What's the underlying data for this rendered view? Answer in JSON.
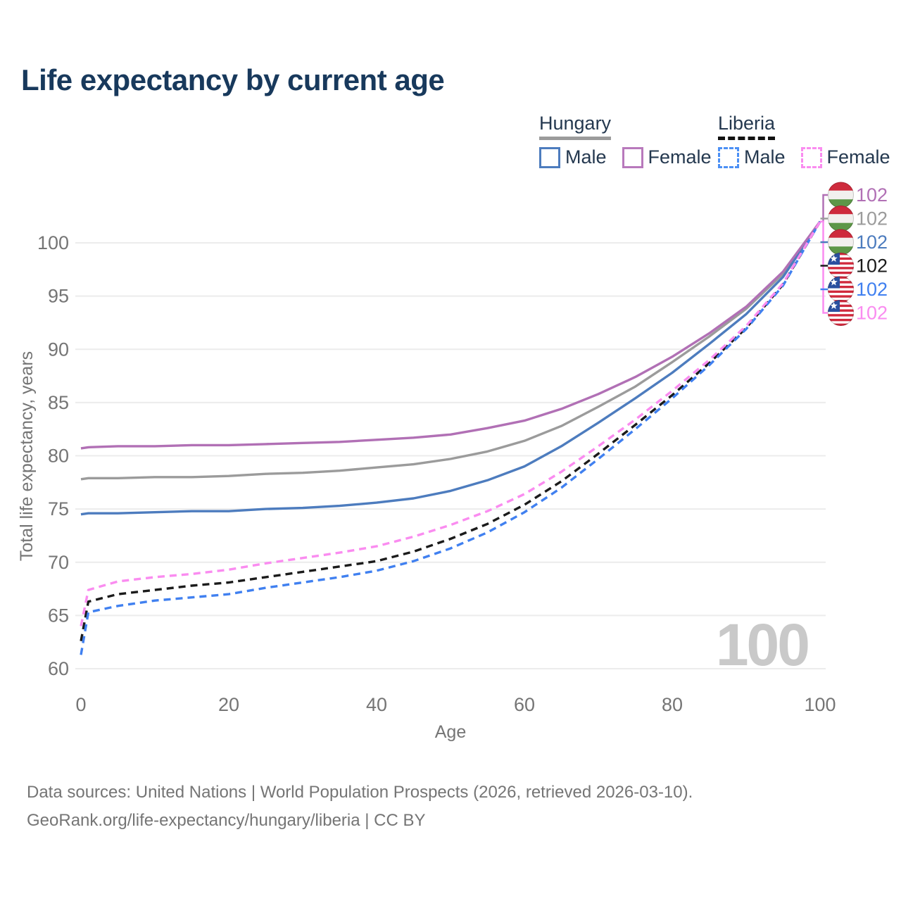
{
  "title": "Life expectancy by current age",
  "legend": {
    "groups": [
      {
        "name": "Hungary",
        "line_style": "solid",
        "underline_color": "#9b9b9b",
        "items": [
          {
            "label": "Male",
            "color": "#4d7cbe"
          },
          {
            "label": "Female",
            "color": "#b879bc"
          }
        ]
      },
      {
        "name": "Liberia",
        "line_style": "dashed",
        "underline_color": "#111111",
        "items": [
          {
            "label": "Male",
            "color": "#4c90f5"
          },
          {
            "label": "Female",
            "color": "#fa8cf0"
          }
        ]
      }
    ]
  },
  "watermark_age": "100",
  "footer": {
    "line1": "Data sources: United Nations | World Population Prospects (2026, retrieved 2026-03-10).",
    "line2": "GeoRank.org/life-expectancy/hungary/liberia | CC BY"
  },
  "chart_data": {
    "type": "line",
    "title": "Life expectancy by current age",
    "xlabel": "Age",
    "ylabel": "Total life expectancy, years",
    "xlim": [
      0,
      100
    ],
    "ylim": [
      60,
      103
    ],
    "xticks": [
      0,
      20,
      40,
      60,
      80,
      100
    ],
    "yticks": [
      60,
      65,
      70,
      75,
      80,
      85,
      90,
      95,
      100
    ],
    "grid": "horizontal-only",
    "legend_position": "top-right",
    "ages": [
      0,
      1,
      5,
      10,
      15,
      20,
      25,
      30,
      35,
      40,
      45,
      50,
      55,
      60,
      65,
      70,
      75,
      80,
      85,
      90,
      95,
      100
    ],
    "series": [
      {
        "name": "Hungary Total",
        "country": "Hungary",
        "sex": "Total",
        "color": "#9b9b9b",
        "dashed": false,
        "values": [
          77.8,
          77.9,
          77.9,
          78.0,
          78.0,
          78.1,
          78.3,
          78.4,
          78.6,
          78.9,
          79.2,
          79.7,
          80.4,
          81.4,
          82.8,
          84.6,
          86.5,
          88.8,
          91.2,
          93.8,
          97.1,
          102
        ]
      },
      {
        "name": "Hungary Male",
        "country": "Hungary",
        "sex": "Male",
        "color": "#4d7cbe",
        "dashed": false,
        "values": [
          74.5,
          74.6,
          74.6,
          74.7,
          74.8,
          74.8,
          75.0,
          75.1,
          75.3,
          75.6,
          76.0,
          76.7,
          77.7,
          79.0,
          80.9,
          83.1,
          85.4,
          87.8,
          90.5,
          93.3,
          96.8,
          102
        ]
      },
      {
        "name": "Hungary Female",
        "country": "Hungary",
        "sex": "Female",
        "color": "#b170b5",
        "dashed": false,
        "values": [
          80.7,
          80.8,
          80.9,
          80.9,
          81.0,
          81.0,
          81.1,
          81.2,
          81.3,
          81.5,
          81.7,
          82.0,
          82.6,
          83.3,
          84.4,
          85.8,
          87.4,
          89.3,
          91.5,
          94.0,
          97.3,
          102
        ]
      },
      {
        "name": "Liberia Total",
        "country": "Liberia",
        "sex": "Total",
        "color": "#1b1b1b",
        "dashed": true,
        "values": [
          62.6,
          66.3,
          67.0,
          67.4,
          67.8,
          68.1,
          68.6,
          69.1,
          69.6,
          70.1,
          71.0,
          72.2,
          73.6,
          75.4,
          77.6,
          80.2,
          82.9,
          85.7,
          88.7,
          92.0,
          96.1,
          102
        ]
      },
      {
        "name": "Liberia Male",
        "country": "Liberia",
        "sex": "Male",
        "color": "#4080f0",
        "dashed": true,
        "values": [
          61.3,
          65.3,
          65.9,
          66.4,
          66.7,
          67.0,
          67.6,
          68.1,
          68.6,
          69.2,
          70.1,
          71.3,
          72.8,
          74.7,
          77.0,
          79.7,
          82.5,
          85.4,
          88.5,
          91.9,
          96.0,
          102
        ]
      },
      {
        "name": "Liberia Female",
        "country": "Liberia",
        "sex": "Female",
        "color": "#fa8cf0",
        "dashed": true,
        "values": [
          64.0,
          67.4,
          68.2,
          68.6,
          68.9,
          69.3,
          69.9,
          70.4,
          70.9,
          71.5,
          72.4,
          73.5,
          74.8,
          76.4,
          78.5,
          80.9,
          83.4,
          86.1,
          89.0,
          92.2,
          96.2,
          102
        ]
      }
    ],
    "end_labels": [
      {
        "series": "Hungary Female",
        "flag": "hungary",
        "label": "102"
      },
      {
        "series": "Hungary Total",
        "flag": "hungary",
        "label": "102"
      },
      {
        "series": "Hungary Male",
        "flag": "hungary",
        "label": "102"
      },
      {
        "series": "Liberia Total",
        "flag": "liberia",
        "label": "102"
      },
      {
        "series": "Liberia Male",
        "flag": "liberia",
        "label": "102"
      },
      {
        "series": "Liberia Female",
        "flag": "liberia",
        "label": "102"
      }
    ],
    "flag_colors": {
      "hungary": {
        "red": "#ce2a3c",
        "white": "#f2f0ee",
        "green": "#5d9748"
      },
      "liberia": {
        "blue": "#2a50a0",
        "red": "#d0293c",
        "white": "#ffffff"
      }
    }
  }
}
